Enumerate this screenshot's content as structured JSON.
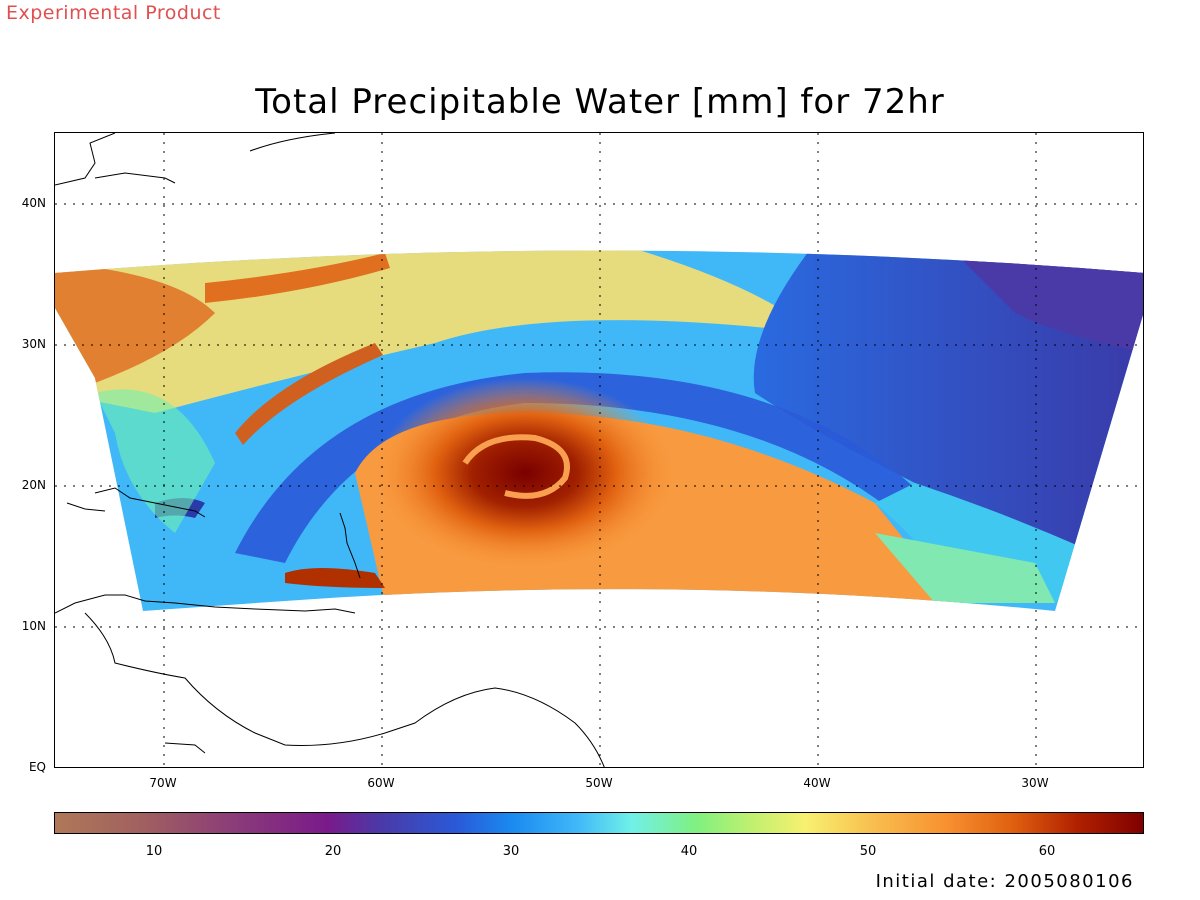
{
  "header": {
    "experimental": "Experimental Product",
    "title": "Total Precipitable Water [mm] for 72hr"
  },
  "map": {
    "lat_labels": [
      "40N",
      "30N",
      "20N",
      "10N",
      "EQ"
    ],
    "lon_labels": [
      "70W",
      "60W",
      "50W",
      "40W",
      "30W"
    ],
    "grid": "dotted",
    "storm_center": {
      "lon": "54W",
      "lat": "21N"
    }
  },
  "colorbar": {
    "ticks": [
      "10",
      "20",
      "30",
      "40",
      "50",
      "60"
    ],
    "colors": {
      "low": "#b07858",
      "purple": "#7a1a8a",
      "blue": "#1a8af0",
      "cyan": "#70f0e8",
      "yellow": "#f8f070",
      "orange": "#f89030",
      "high": "#800000"
    }
  },
  "footer": {
    "initial_date": "Initial date: 2005080106"
  }
}
